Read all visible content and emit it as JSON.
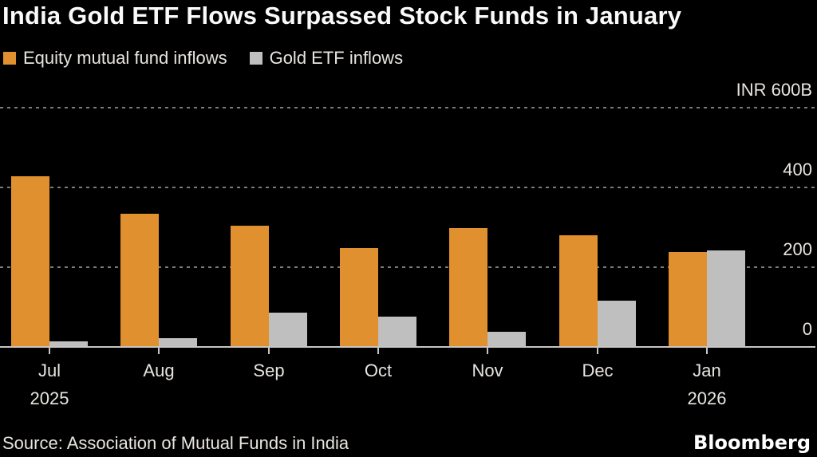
{
  "title": "India Gold ETF Flows Surpassed Stock Funds in January",
  "legend": {
    "items": [
      {
        "id": "equity",
        "label": "Equity mutual fund inflows",
        "color": "#e0902e"
      },
      {
        "id": "gold",
        "label": "Gold ETF inflows",
        "color": "#bfbfbf"
      }
    ]
  },
  "chart_data": {
    "type": "bar",
    "title": "India Gold ETF Flows Surpassed Stock Funds in January",
    "unit": "INR billions",
    "categories": [
      "Jul",
      "Aug",
      "Sep",
      "Oct",
      "Nov",
      "Dec",
      "Jan"
    ],
    "year_labels": [
      {
        "index": 0,
        "label": "2025"
      },
      {
        "index": 6,
        "label": "2026"
      }
    ],
    "series": [
      {
        "name": "Equity mutual fund inflows",
        "color": "#e0902e",
        "values": [
          427,
          334,
          304,
          248,
          298,
          279,
          238
        ]
      },
      {
        "name": "Gold ETF inflows",
        "color": "#bfbfbf",
        "values": [
          14,
          21,
          85,
          76,
          37,
          116,
          242
        ]
      }
    ],
    "yticks": [
      {
        "value": 600,
        "label": "INR 600B"
      },
      {
        "value": 400,
        "label": "400"
      },
      {
        "value": 200,
        "label": "200"
      },
      {
        "value": 0,
        "label": "0"
      }
    ],
    "ylim": [
      0,
      670
    ],
    "grid": "horizontal-dashed",
    "legend_position": "top-left",
    "baseline": "solid"
  },
  "source": "Source: Association of Mutual Funds in India",
  "brand": "Bloomberg",
  "colors": {
    "background": "#000000",
    "title_text": "#fbfaf8",
    "axis_text": "#e8e5e0",
    "gridline": "#7b7b7b",
    "axis_line": "#c8c5c0"
  }
}
